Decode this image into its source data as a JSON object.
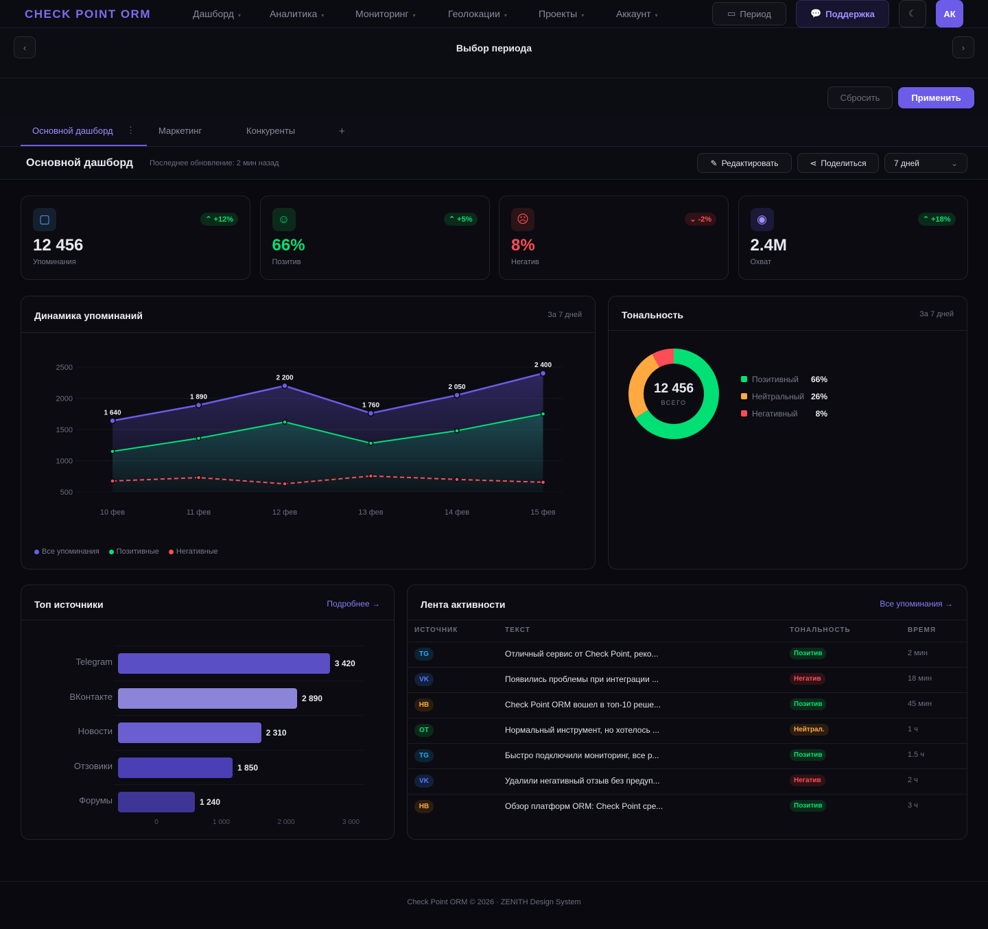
{
  "brand": "CHECK POINT ORM",
  "nav": [
    "Дашборд",
    "Аналитика",
    "Мониторинг",
    "Геолокации",
    "Проекты",
    "Аккаунт"
  ],
  "top": {
    "period": "Период",
    "support": "Поддержка",
    "avatar": "АК"
  },
  "period_bar": {
    "title": "Выбор периода",
    "reset": "Сбросить",
    "apply": "Применить"
  },
  "tabs": [
    "Основной дашборд",
    "Маркетинг",
    "Конкуренты"
  ],
  "header": {
    "title": "Основной дашборд",
    "updated": "Последнее обновление: 2 мин назад",
    "edit": "Редактировать",
    "share": "Поделиться",
    "range": "7 дней"
  },
  "kpis": [
    {
      "value": "12 456",
      "label": "Упоминания",
      "delta": "+12%",
      "dir": "up",
      "color": "#e8e8f0",
      "icon": "chat-icon"
    },
    {
      "value": "66%",
      "label": "Позитив",
      "delta": "+5%",
      "dir": "up",
      "color": "#00e074",
      "icon": "smile-icon"
    },
    {
      "value": "8%",
      "label": "Негатив",
      "delta": "-2%",
      "dir": "down",
      "color": "#ff4d57",
      "icon": "frown-icon"
    },
    {
      "value": "2.4M",
      "label": "Охват",
      "delta": "+18%",
      "dir": "up",
      "color": "#e8e8f0",
      "icon": "eye-icon"
    }
  ],
  "dynamics": {
    "title": "Динамика упоминаний",
    "period": "За 7 дней"
  },
  "tonality": {
    "title": "Тональность",
    "period": "За 7 дней",
    "total": "12 456",
    "total_label": "ВСЕГО",
    "items": [
      {
        "label": "Позитивный",
        "value": 66,
        "text": "66%",
        "color": "#00e074"
      },
      {
        "label": "Нейтральный",
        "value": 26,
        "text": "26%",
        "color": "#ffa940"
      },
      {
        "label": "Негативный",
        "value": 8,
        "text": "8%",
        "color": "#ff4d57"
      }
    ]
  },
  "sources": {
    "title": "Топ источники",
    "link": "Подробнее →"
  },
  "feed": {
    "title": "Лента активности",
    "link": "Все упоминания →",
    "columns": [
      "ИСТОЧНИК",
      "ТЕКСТ",
      "ТОНАЛЬНОСТЬ",
      "ВРЕМЯ"
    ],
    "rows": [
      {
        "src": "TG",
        "text": "Отличный сервис от Check Point, реко...",
        "tone": "Позитив",
        "time": "2 мин"
      },
      {
        "src": "VK",
        "text": "Появились проблемы при интеграции ...",
        "tone": "Негатив",
        "time": "18 мин"
      },
      {
        "src": "НВ",
        "text": "Check Point ORM вошел в топ-10 реше...",
        "tone": "Позитив",
        "time": "45 мин"
      },
      {
        "src": "ОТ",
        "text": "Нормальный инструмент, но хотелось ...",
        "tone": "Нейтрал.",
        "time": "1 ч"
      },
      {
        "src": "TG",
        "text": "Быстро подключили мониторинг, все р...",
        "tone": "Позитив",
        "time": "1.5 ч"
      },
      {
        "src": "VK",
        "text": "Удалили негативный отзыв без предуп...",
        "tone": "Негатив",
        "time": "2 ч"
      },
      {
        "src": "НВ",
        "text": "Обзор платформ ORM: Check Point сре...",
        "tone": "Позитив",
        "time": "3 ч"
      }
    ]
  },
  "footer": "Check Point ORM © 2026 · ZENITH Design System",
  "chart_data": [
    {
      "type": "line",
      "title": "Динамика упоминаний",
      "categories": [
        "10 фев",
        "11 фев",
        "12 фев",
        "13 фев",
        "14 фев",
        "15 фев"
      ],
      "yticks": [
        500,
        1000,
        1500,
        2000,
        2500
      ],
      "ylim": [
        500,
        2500
      ],
      "series": [
        {
          "name": "Все упоминания",
          "color": "#6c5ce7",
          "values": [
            1640,
            1890,
            2200,
            1760,
            2050,
            2400
          ],
          "labels": [
            "1 640",
            "1 890",
            "2 200",
            "1 760",
            "2 050",
            "2 400"
          ]
        },
        {
          "name": "Позитивные",
          "color": "#00e074",
          "values": [
            1150,
            1360,
            1620,
            1280,
            1480,
            1750
          ]
        },
        {
          "name": "Негативные",
          "color": "#ff4d57",
          "values": [
            675,
            730,
            630,
            755,
            700,
            655
          ],
          "dashed": true
        }
      ],
      "legend": "bottom-left"
    },
    {
      "type": "bar",
      "title": "Топ источники",
      "orientation": "horizontal",
      "categories": [
        "Telegram",
        "ВКонтакте",
        "Новости",
        "Отзовики",
        "Форумы"
      ],
      "values": [
        3420,
        2890,
        2310,
        1850,
        1240
      ],
      "labels": [
        "3 420",
        "2 890",
        "2 310",
        "1 850",
        "1 240"
      ],
      "colors": [
        "#5b4fc6",
        "#8b84d9",
        "#6a5ed0",
        "#4b3fb5",
        "#3f3596"
      ],
      "xticks": [
        "0",
        "1 000",
        "2 000",
        "3 000"
      ]
    }
  ]
}
